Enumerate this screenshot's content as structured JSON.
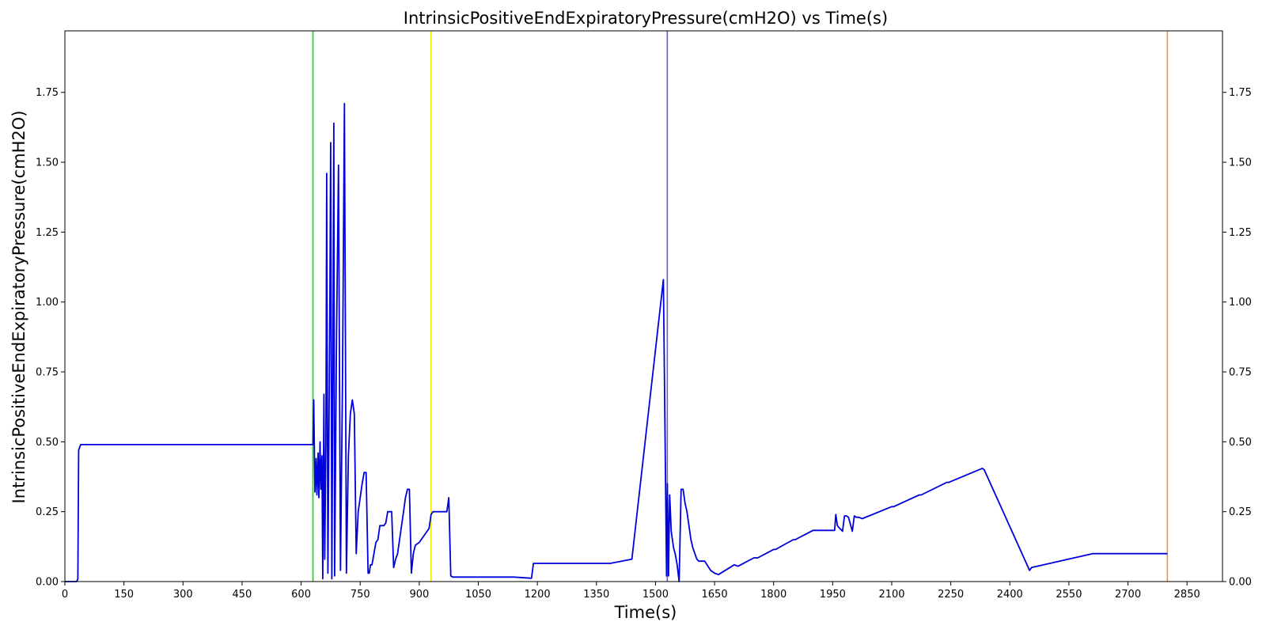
{
  "chart_data": {
    "type": "line",
    "title": "IntrinsicPositiveEndExpiratoryPressure(cmH2O) vs Time(s)",
    "xlabel": "Time(s)",
    "ylabel": "IntrinsicPositiveEndExpiratoryPressure(cmH2O)",
    "xlim": [
      0,
      2940
    ],
    "ylim": [
      0,
      1.97
    ],
    "xticks": [
      0,
      150,
      300,
      450,
      600,
      750,
      900,
      1050,
      1200,
      1350,
      1500,
      1650,
      1800,
      1950,
      2100,
      2250,
      2400,
      2550,
      2700,
      2850
    ],
    "yticks": [
      0.0,
      0.25,
      0.5,
      0.75,
      1.0,
      1.25,
      1.5,
      1.75
    ],
    "ytick_labels": [
      "0.00",
      "0.25",
      "0.50",
      "0.75",
      "1.00",
      "1.25",
      "1.50",
      "1.75"
    ],
    "right_axis_ticks": true,
    "grid": false,
    "event_lines": [
      {
        "x": 630,
        "color": "#00e000"
      },
      {
        "x": 930,
        "color": "#f0f000"
      },
      {
        "x": 1530,
        "color": "#6a5acd"
      },
      {
        "x": 2800,
        "color": "#ff8c3a"
      }
    ],
    "series": [
      {
        "color": "#0000dd",
        "x": [
          0,
          30,
          33,
          35,
          40,
          600,
          630,
          632,
          635,
          638,
          640,
          643,
          645,
          648,
          650,
          653,
          655,
          658,
          660,
          663,
          665,
          668,
          670,
          673,
          675,
          678,
          680,
          683,
          685,
          690,
          695,
          700,
          705,
          710,
          715,
          720,
          725,
          730,
          735,
          740,
          745,
          750,
          755,
          760,
          765,
          770,
          773,
          776,
          780,
          785,
          790,
          795,
          800,
          805,
          810,
          815,
          820,
          825,
          830,
          835,
          840,
          845,
          850,
          855,
          860,
          865,
          870,
          875,
          880,
          885,
          890,
          900,
          920,
          925,
          930,
          935,
          938,
          940,
          945,
          950,
          955,
          960,
          970,
          975,
          980,
          985,
          990,
          995,
          1000,
          1005,
          1010,
          1020,
          1030,
          1040,
          1050,
          1080,
          1110,
          1140,
          1185,
          1190,
          1195,
          1200,
          1350,
          1380,
          1385,
          1440,
          1520,
          1528,
          1530,
          1533,
          1536,
          1538,
          1540,
          1543,
          1546,
          1550,
          1555,
          1560,
          1565,
          1570,
          1575,
          1580,
          1585,
          1590,
          1595,
          1600,
          1605,
          1610,
          1615,
          1620,
          1625,
          1640,
          1650,
          1660,
          1700,
          1710,
          1750,
          1760,
          1800,
          1805,
          1850,
          1855,
          1900,
          1905,
          1955,
          1958,
          1962,
          1968,
          1975,
          1980,
          1985,
          1990,
          2000,
          2005,
          2010,
          2015,
          2020,
          2025,
          2100,
          2105,
          2170,
          2175,
          2240,
          2245,
          2330,
          2335,
          2450,
          2455,
          2610,
          2615,
          2800
        ],
        "y": [
          0,
          0,
          0.01,
          0.47,
          0.49,
          0.49,
          0.49,
          0.65,
          0.32,
          0.44,
          0.31,
          0.46,
          0.3,
          0.5,
          0.33,
          0.45,
          0.01,
          0.67,
          0.08,
          0.5,
          1.46,
          0.03,
          0.4,
          1.0,
          1.57,
          0.01,
          0.6,
          1.64,
          0.02,
          0.9,
          1.49,
          0.04,
          0.7,
          1.71,
          0.03,
          0.45,
          0.6,
          0.65,
          0.6,
          0.1,
          0.25,
          0.3,
          0.35,
          0.39,
          0.39,
          0.03,
          0.03,
          0.06,
          0.06,
          0.1,
          0.14,
          0.15,
          0.2,
          0.2,
          0.2,
          0.21,
          0.25,
          0.25,
          0.25,
          0.05,
          0.08,
          0.1,
          0.15,
          0.2,
          0.25,
          0.3,
          0.33,
          0.33,
          0.03,
          0.1,
          0.13,
          0.14,
          0.18,
          0.19,
          0.24,
          0.25,
          0.25,
          0.25,
          0.25,
          0.25,
          0.25,
          0.25,
          0.25,
          0.3,
          0.02,
          0.016,
          0.016,
          0.016,
          0.016,
          0.016,
          0.016,
          0.016,
          0.016,
          0.016,
          0.016,
          0.016,
          0.016,
          0.016,
          0.012,
          0.065,
          0.065,
          0.065,
          0.065,
          0.065,
          0.065,
          0.08,
          1.08,
          0.02,
          0.35,
          0.02,
          0.31,
          0.25,
          0.18,
          0.15,
          0.12,
          0.1,
          0.06,
          0.0,
          0.33,
          0.33,
          0.28,
          0.25,
          0.2,
          0.15,
          0.12,
          0.1,
          0.08,
          0.073,
          0.073,
          0.073,
          0.073,
          0.04,
          0.03,
          0.025,
          0.06,
          0.055,
          0.085,
          0.085,
          0.115,
          0.115,
          0.15,
          0.15,
          0.183,
          0.183,
          0.183,
          0.24,
          0.2,
          0.19,
          0.18,
          0.235,
          0.235,
          0.23,
          0.18,
          0.235,
          0.23,
          0.23,
          0.228,
          0.225,
          0.268,
          0.268,
          0.31,
          0.31,
          0.355,
          0.355,
          0.405,
          0.4,
          0.04,
          0.05,
          0.1,
          0.1,
          0.1
        ]
      }
    ]
  }
}
